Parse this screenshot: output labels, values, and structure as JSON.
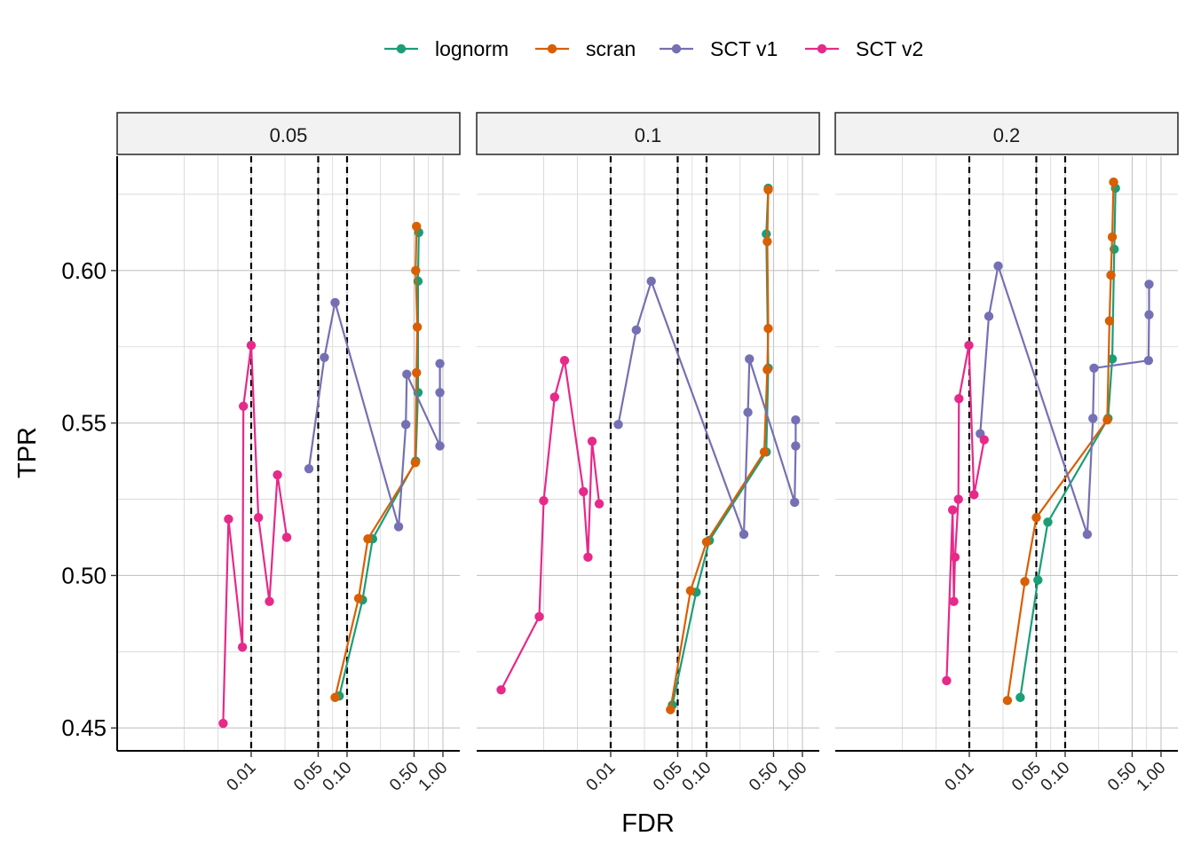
{
  "chart_data": {
    "type": "line",
    "xlabel": "FDR",
    "ylabel": "TPR",
    "x_scale": "log10",
    "xlim": [
      0.0004,
      1.5
    ],
    "ylim": [
      0.4425,
      0.6375
    ],
    "x_ticks": [
      0.01,
      0.05,
      0.1,
      0.5,
      1.0
    ],
    "x_tick_labels": [
      "0.01",
      "0.05",
      "0.10",
      "0.50",
      "1.00"
    ],
    "y_ticks": [
      0.45,
      0.5,
      0.55,
      0.6
    ],
    "y_tick_labels": [
      "0.45",
      "0.50",
      "0.55",
      "0.60"
    ],
    "x_minor_gridlines": [
      0.002,
      0.0045,
      0.0225,
      0.0707,
      0.2236,
      0.7071
    ],
    "y_minor_gridlines": [
      0.475,
      0.525,
      0.575,
      0.625
    ],
    "reference_lines_x": [
      0.01,
      0.05,
      0.1
    ],
    "legend": {
      "position": "top",
      "entries": [
        {
          "label": "lognorm",
          "color": "#1b9e77"
        },
        {
          "label": "scran",
          "color": "#d95f02"
        },
        {
          "label": "SCT v1",
          "color": "#7570b3"
        },
        {
          "label": "SCT v2",
          "color": "#e7298a"
        }
      ]
    },
    "panels": [
      {
        "label": "0.05",
        "series": [
          {
            "name": "lognorm",
            "points": [
              [
                0.083,
                0.4605
              ],
              [
                0.145,
                0.492
              ],
              [
                0.185,
                0.512
              ],
              [
                0.52,
                0.5375
              ],
              [
                0.55,
                0.56
              ],
              [
                0.55,
                0.5965
              ],
              [
                0.56,
                0.6125
              ]
            ]
          },
          {
            "name": "scran",
            "points": [
              [
                0.075,
                0.46
              ],
              [
                0.132,
                0.4925
              ],
              [
                0.165,
                0.512
              ],
              [
                0.515,
                0.537
              ],
              [
                0.53,
                0.5665
              ],
              [
                0.54,
                0.5815
              ],
              [
                0.52,
                0.6
              ],
              [
                0.53,
                0.6145
              ]
            ]
          },
          {
            "name": "SCT v1",
            "points": [
              [
                0.04,
                0.535
              ],
              [
                0.058,
                0.5715
              ],
              [
                0.075,
                0.5895
              ],
              [
                0.345,
                0.516
              ],
              [
                0.41,
                0.5495
              ],
              [
                0.42,
                0.566
              ],
              [
                0.93,
                0.5425
              ],
              [
                0.93,
                0.56
              ],
              [
                0.93,
                0.5695
              ]
            ]
          },
          {
            "name": "SCT v2",
            "points": [
              [
                0.0051,
                0.4515
              ],
              [
                0.0058,
                0.5185
              ],
              [
                0.0081,
                0.4765
              ],
              [
                0.0083,
                0.5555
              ],
              [
                0.01,
                0.5755
              ],
              [
                0.0119,
                0.519
              ],
              [
                0.0155,
                0.4915
              ],
              [
                0.0188,
                0.533
              ],
              [
                0.0235,
                0.5125
              ]
            ]
          }
        ]
      },
      {
        "label": "0.1",
        "series": [
          {
            "name": "lognorm",
            "points": [
              [
                0.044,
                0.4575
              ],
              [
                0.078,
                0.4945
              ],
              [
                0.107,
                0.5115
              ],
              [
                0.42,
                0.5405
              ],
              [
                0.44,
                0.568
              ],
              [
                0.42,
                0.612
              ],
              [
                0.44,
                0.627
              ]
            ]
          },
          {
            "name": "scran",
            "points": [
              [
                0.042,
                0.456
              ],
              [
                0.068,
                0.495
              ],
              [
                0.1,
                0.511
              ],
              [
                0.4,
                0.5405
              ],
              [
                0.43,
                0.5675
              ],
              [
                0.44,
                0.581
              ],
              [
                0.43,
                0.6095
              ],
              [
                0.44,
                0.6265
              ]
            ]
          },
          {
            "name": "SCT v1",
            "points": [
              [
                0.012,
                0.5495
              ],
              [
                0.0185,
                0.5805
              ],
              [
                0.0265,
                0.5965
              ],
              [
                0.245,
                0.5135
              ],
              [
                0.27,
                0.5535
              ],
              [
                0.28,
                0.571
              ],
              [
                0.83,
                0.524
              ],
              [
                0.85,
                0.5425
              ],
              [
                0.85,
                0.551
              ]
            ]
          },
          {
            "name": "SCT v2",
            "points": [
              [
                0.00072,
                0.4625
              ],
              [
                0.0018,
                0.4865
              ],
              [
                0.002,
                0.5245
              ],
              [
                0.0026,
                0.5585
              ],
              [
                0.0033,
                0.5705
              ],
              [
                0.0052,
                0.5275
              ],
              [
                0.0058,
                0.506
              ],
              [
                0.0064,
                0.544
              ],
              [
                0.0076,
                0.5235
              ]
            ]
          }
        ]
      },
      {
        "label": "0.2",
        "series": [
          {
            "name": "lognorm",
            "points": [
              [
                0.034,
                0.46
              ],
              [
                0.052,
                0.4985
              ],
              [
                0.066,
                0.5175
              ],
              [
                0.28,
                0.5515
              ],
              [
                0.31,
                0.571
              ],
              [
                0.325,
                0.607
              ],
              [
                0.335,
                0.627
              ]
            ]
          },
          {
            "name": "scran",
            "points": [
              [
                0.025,
                0.459
              ],
              [
                0.038,
                0.498
              ],
              [
                0.05,
                0.519
              ],
              [
                0.275,
                0.551
              ],
              [
                0.29,
                0.5835
              ],
              [
                0.3,
                0.5985
              ],
              [
                0.31,
                0.611
              ],
              [
                0.32,
                0.629
              ]
            ]
          },
          {
            "name": "SCT v1",
            "points": [
              [
                0.013,
                0.5465
              ],
              [
                0.016,
                0.585
              ],
              [
                0.02,
                0.6015
              ],
              [
                0.17,
                0.5135
              ],
              [
                0.195,
                0.5515
              ],
              [
                0.2,
                0.568
              ],
              [
                0.74,
                0.5705
              ],
              [
                0.75,
                0.5855
              ],
              [
                0.75,
                0.5955
              ]
            ]
          },
          {
            "name": "SCT v2",
            "points": [
              [
                0.0058,
                0.4655
              ],
              [
                0.0067,
                0.5215
              ],
              [
                0.0069,
                0.4915
              ],
              [
                0.0071,
                0.506
              ],
              [
                0.0077,
                0.525
              ],
              [
                0.0078,
                0.558
              ],
              [
                0.0099,
                0.5755
              ],
              [
                0.0112,
                0.5265
              ],
              [
                0.0143,
                0.5445
              ]
            ]
          }
        ]
      }
    ]
  }
}
